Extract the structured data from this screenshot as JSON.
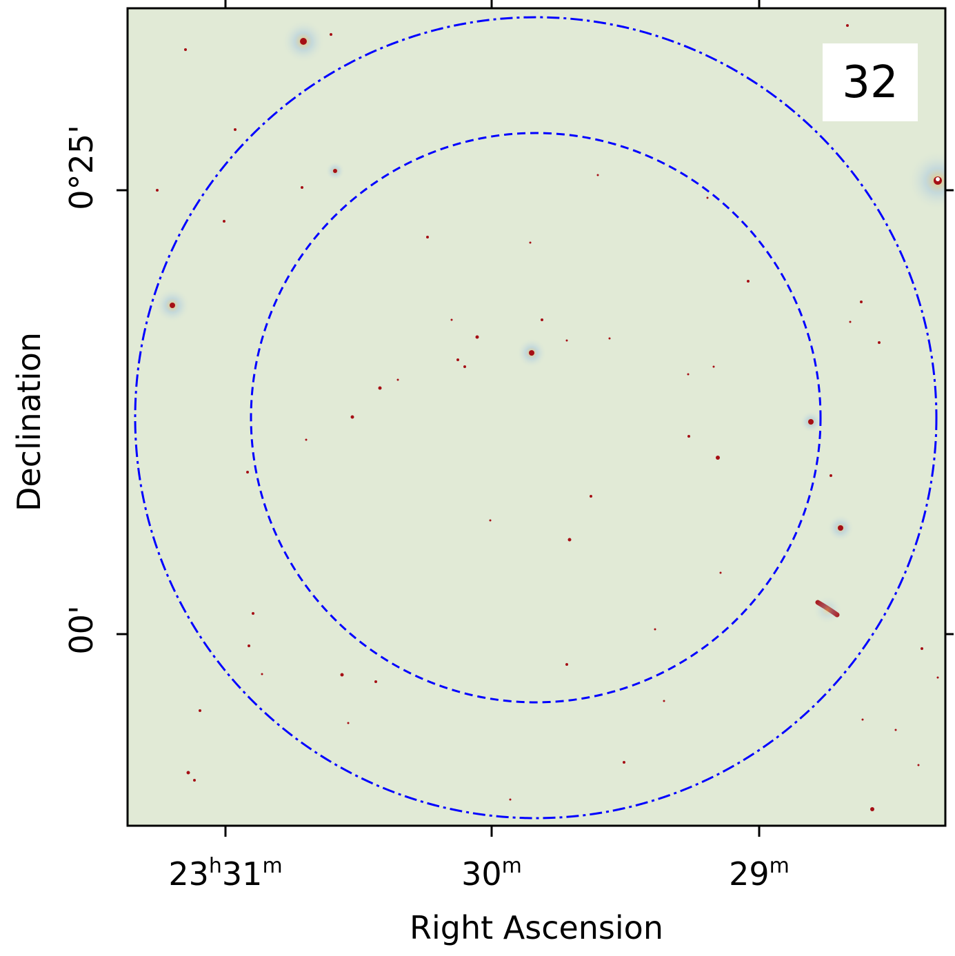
{
  "panel_label": "32",
  "axes": {
    "xlabel": "Right Ascension",
    "ylabel": "Declination",
    "x_ticks": [
      {
        "h": "23",
        "m": "31",
        "full": "23h31m"
      },
      {
        "m": "30",
        "full": "30m"
      },
      {
        "m": "29",
        "full": "29m"
      }
    ],
    "y_ticks": [
      {
        "text": "0°25'"
      },
      {
        "text": "00'"
      }
    ]
  },
  "image": {
    "type": "radio continuum map",
    "background_color": "#e1ead6",
    "source_color": "#a50f15",
    "colormap": "RdYlBu_r"
  },
  "overlays": [
    {
      "name": "inner circle",
      "style": "dashed",
      "color": "#0000ff"
    },
    {
      "name": "outer circle",
      "style": "dash-dot",
      "color": "#0000ff"
    }
  ]
}
